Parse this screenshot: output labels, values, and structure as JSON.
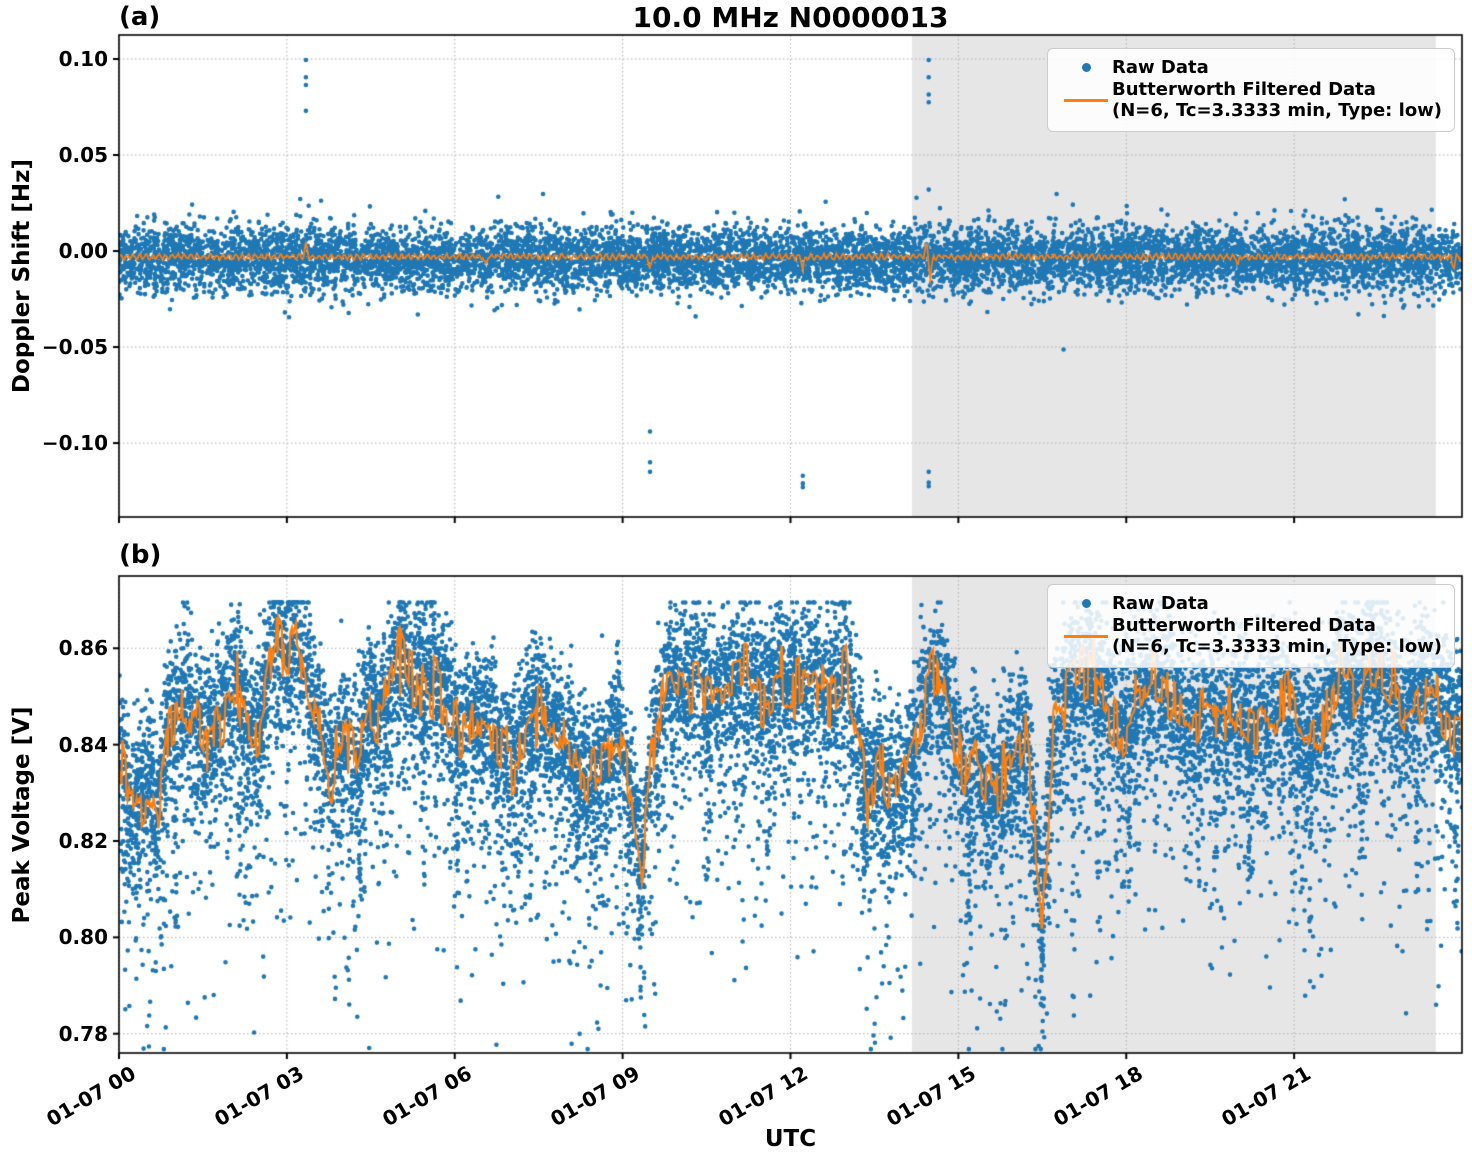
{
  "title": "10.0 MHz N0000013",
  "xlabel": "UTC",
  "panel_a_label": "(a)",
  "panel_b_label": "(b)",
  "legend": {
    "raw": "Raw Data",
    "filtered_1": "Butterworth Filtered Data",
    "filtered_2": "(N=6, Tc=3.3333 min, Type: low)"
  },
  "colors": {
    "raw": "#1f77b4",
    "filtered": "#ff7f0e",
    "shaded_span": "#e6e6e6",
    "grid": "#b0b0b0",
    "spine": "#000000",
    "legend_border": "#cccccc"
  },
  "chart_data": [
    {
      "type": "scatter+line",
      "panel": "(a)",
      "ylabel": "Doppler Shift [Hz]",
      "ylim": [
        -0.1385,
        0.1125
      ],
      "yticks": [
        0.1,
        0.05,
        0.0,
        -0.05,
        -0.1
      ],
      "ytick_labels": [
        "0.10",
        "0.05",
        "0.00",
        "−0.05",
        "−0.10"
      ],
      "x_range_hours": [
        0,
        24
      ],
      "xticks_hours": [
        0,
        3,
        6,
        9,
        12,
        15,
        18,
        21
      ],
      "xtick_labels": [
        "01-07 00",
        "01-07 03",
        "01-07 06",
        "01-07 09",
        "01-07 12",
        "01-07 15",
        "01-07 18",
        "01-07 21"
      ],
      "shaded_span_hours": [
        14.17,
        23.53
      ],
      "grid": true,
      "legend_loc": "upper right",
      "series_raw": {
        "name": "Raw Data",
        "n": 9000,
        "center": -0.004,
        "sigma": 0.0085,
        "wide_fraction": 0.013,
        "wide_sigma": 0.016,
        "outliers": [
          [
            3.34,
            0.0995
          ],
          [
            3.34,
            0.0905
          ],
          [
            3.34,
            0.0865
          ],
          [
            3.34,
            0.073
          ],
          [
            9.49,
            -0.094
          ],
          [
            9.49,
            -0.11
          ],
          [
            9.49,
            -0.115
          ],
          [
            12.22,
            -0.117
          ],
          [
            12.22,
            -0.121
          ],
          [
            12.22,
            -0.123
          ],
          [
            14.47,
            0.0995
          ],
          [
            14.47,
            0.0905
          ],
          [
            14.47,
            0.0815
          ],
          [
            14.47,
            0.0775
          ],
          [
            14.47,
            0.032
          ],
          [
            14.47,
            -0.115
          ],
          [
            14.47,
            -0.1205
          ],
          [
            14.47,
            -0.1225
          ]
        ]
      },
      "series_filtered": {
        "name": "Butterworth Filtered Data (N=6, Tc=3.3333 min, Type: low)",
        "baseline": -0.003,
        "ripple_amp": 0.0012,
        "spike_width_hours": 0.05,
        "spikes": [
          [
            3.34,
            0.0065
          ],
          [
            6.55,
            -0.0045
          ],
          [
            9.49,
            -0.0075
          ],
          [
            12.22,
            -0.006
          ],
          [
            14.43,
            0.007
          ],
          [
            14.5,
            -0.011
          ],
          [
            20.0,
            -0.0035
          ],
          [
            23.85,
            -0.006
          ]
        ]
      }
    },
    {
      "type": "scatter+line",
      "panel": "(b)",
      "ylabel": "Peak Voltage [V]",
      "ylim": [
        0.776,
        0.875
      ],
      "yticks": [
        0.86,
        0.84,
        0.82,
        0.8,
        0.78
      ],
      "ytick_labels": [
        "0.86",
        "0.84",
        "0.82",
        "0.80",
        "0.78"
      ],
      "x_range_hours": [
        0,
        24
      ],
      "xticks_hours": [
        0,
        3,
        6,
        9,
        12,
        15,
        18,
        21
      ],
      "xtick_labels": [
        "01-07 00",
        "01-07 03",
        "01-07 06",
        "01-07 09",
        "01-07 12",
        "01-07 15",
        "01-07 18",
        "01-07 21"
      ],
      "shaded_span_hours": [
        14.17,
        23.53
      ],
      "grid": true,
      "legend_loc": "upper right",
      "series_raw": {
        "name": "Raw Data",
        "n": 14000,
        "sigma_up": 0.0075,
        "offset": 0.002,
        "tail_fraction": 0.38,
        "tail_scale": 0.013,
        "tail_max": 0.055,
        "cap": 0.8695,
        "deep_dips": [
          [
            1.0,
            0.795
          ],
          [
            2.15,
            0.807
          ],
          [
            4.3,
            0.804
          ],
          [
            5.45,
            0.809
          ],
          [
            6.05,
            0.807
          ],
          [
            7.35,
            0.806
          ],
          [
            8.2,
            0.81
          ],
          [
            9.3,
            0.786
          ],
          [
            10.5,
            0.812
          ],
          [
            11.6,
            0.81
          ],
          [
            13.3,
            0.802
          ],
          [
            14.2,
            0.808
          ],
          [
            15.2,
            0.8
          ],
          [
            16.5,
            0.78
          ],
          [
            17.05,
            0.779
          ],
          [
            17.5,
            0.8
          ],
          [
            18.05,
            0.806
          ],
          [
            19.3,
            0.809
          ],
          [
            20.2,
            0.806
          ],
          [
            21.3,
            0.794
          ],
          [
            22.2,
            0.805
          ],
          [
            23.2,
            0.808
          ],
          [
            23.9,
            0.799
          ]
        ]
      },
      "series_filtered": {
        "name": "Butterworth Filtered Data (N=6, Tc=3.3333 min, Type: low)",
        "osc_amp": 0.009,
        "clamp": [
          0.802,
          0.8665
        ],
        "control_points": [
          [
            0.0,
            0.84
          ],
          [
            0.2,
            0.826
          ],
          [
            0.5,
            0.832
          ],
          [
            0.7,
            0.825
          ],
          [
            0.9,
            0.845
          ],
          [
            1.2,
            0.848
          ],
          [
            1.5,
            0.84
          ],
          [
            1.8,
            0.846
          ],
          [
            2.1,
            0.852
          ],
          [
            2.3,
            0.84
          ],
          [
            2.5,
            0.842
          ],
          [
            2.8,
            0.862
          ],
          [
            3.0,
            0.856
          ],
          [
            3.2,
            0.864
          ],
          [
            3.4,
            0.852
          ],
          [
            3.6,
            0.842
          ],
          [
            3.8,
            0.834
          ],
          [
            4.0,
            0.842
          ],
          [
            4.2,
            0.836
          ],
          [
            4.5,
            0.848
          ],
          [
            4.7,
            0.845
          ],
          [
            5.0,
            0.859
          ],
          [
            5.2,
            0.852
          ],
          [
            5.5,
            0.855
          ],
          [
            5.8,
            0.85
          ],
          [
            6.1,
            0.843
          ],
          [
            6.4,
            0.846
          ],
          [
            6.6,
            0.842
          ],
          [
            6.9,
            0.837
          ],
          [
            7.2,
            0.84
          ],
          [
            7.5,
            0.848
          ],
          [
            7.8,
            0.842
          ],
          [
            8.1,
            0.837
          ],
          [
            8.4,
            0.832
          ],
          [
            8.7,
            0.835
          ],
          [
            8.9,
            0.843
          ],
          [
            9.2,
            0.828
          ],
          [
            9.35,
            0.815
          ],
          [
            9.5,
            0.836
          ],
          [
            9.8,
            0.854
          ],
          [
            10.0,
            0.851
          ],
          [
            10.3,
            0.854
          ],
          [
            10.6,
            0.85
          ],
          [
            10.9,
            0.853
          ],
          [
            11.2,
            0.855
          ],
          [
            11.5,
            0.85
          ],
          [
            11.8,
            0.855
          ],
          [
            12.1,
            0.852
          ],
          [
            12.4,
            0.855
          ],
          [
            12.7,
            0.85
          ],
          [
            13.0,
            0.855
          ],
          [
            13.2,
            0.842
          ],
          [
            13.4,
            0.83
          ],
          [
            13.6,
            0.836
          ],
          [
            13.8,
            0.829
          ],
          [
            14.1,
            0.835
          ],
          [
            14.4,
            0.85
          ],
          [
            14.6,
            0.854
          ],
          [
            14.9,
            0.842
          ],
          [
            15.1,
            0.831
          ],
          [
            15.3,
            0.836
          ],
          [
            15.6,
            0.828
          ],
          [
            15.9,
            0.834
          ],
          [
            16.2,
            0.842
          ],
          [
            16.5,
            0.805
          ],
          [
            16.7,
            0.845
          ],
          [
            17.0,
            0.852
          ],
          [
            17.3,
            0.857
          ],
          [
            17.6,
            0.85
          ],
          [
            17.9,
            0.843
          ],
          [
            18.2,
            0.848
          ],
          [
            18.5,
            0.853
          ],
          [
            18.8,
            0.849
          ],
          [
            19.1,
            0.843
          ],
          [
            19.4,
            0.848
          ],
          [
            19.7,
            0.843
          ],
          [
            20.0,
            0.847
          ],
          [
            20.3,
            0.842
          ],
          [
            20.6,
            0.846
          ],
          [
            20.9,
            0.85
          ],
          [
            21.2,
            0.84
          ],
          [
            21.5,
            0.845
          ],
          [
            21.8,
            0.855
          ],
          [
            22.1,
            0.85
          ],
          [
            22.4,
            0.857
          ],
          [
            22.7,
            0.852
          ],
          [
            23.0,
            0.846
          ],
          [
            23.3,
            0.852
          ],
          [
            23.6,
            0.848
          ],
          [
            23.9,
            0.843
          ]
        ]
      }
    }
  ]
}
